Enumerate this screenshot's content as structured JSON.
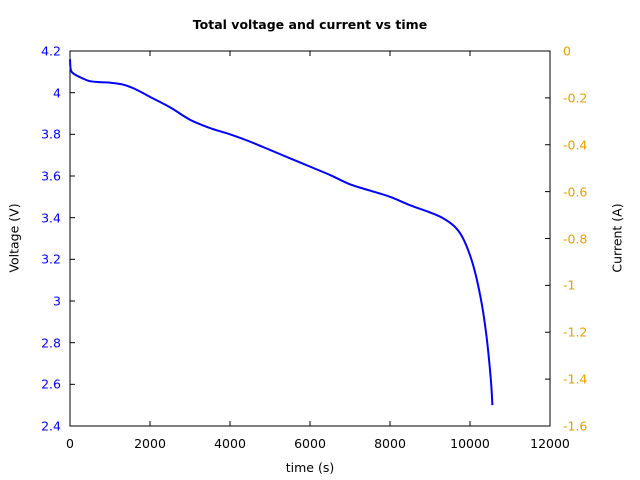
{
  "chart_data": {
    "type": "line",
    "title": "Total voltage and current vs time",
    "xlabel": "time (s)",
    "ylabel": "Voltage (V)",
    "y2label": "Current (A)",
    "xlim": [
      0,
      12000
    ],
    "ylim": [
      2.4,
      4.2
    ],
    "y2lim": [
      -1.6,
      0
    ],
    "grid": false,
    "legend": null,
    "x_ticks": [
      "0",
      "2000",
      "4000",
      "6000",
      "8000",
      "10000",
      "12000"
    ],
    "y_ticks": [
      "4.2",
      "4",
      "3.8",
      "3.6",
      "3.4",
      "3.2",
      "3",
      "2.8",
      "2.6",
      "2.4"
    ],
    "y2_ticks": [
      "0",
      "-0.2",
      "-0.4",
      "-0.6",
      "-0.8",
      "-1",
      "-1.2",
      "-1.4",
      "-1.6"
    ],
    "colors": {
      "voltage": "#0000ff",
      "current_axis": "#e69f00"
    },
    "series": [
      {
        "name": "Voltage",
        "axis": "left",
        "color": "#0000ff",
        "x": [
          0,
          20,
          100,
          300,
          500,
          800,
          1000,
          1300,
          1600,
          2000,
          2500,
          3000,
          3500,
          4000,
          4500,
          5000,
          5500,
          6000,
          6500,
          7000,
          7500,
          8000,
          8500,
          9000,
          9300,
          9600,
          9800,
          10000,
          10150,
          10300,
          10400,
          10470,
          10530,
          10560
        ],
        "values": [
          4.16,
          4.11,
          4.09,
          4.07,
          4.055,
          4.05,
          4.048,
          4.04,
          4.02,
          3.98,
          3.93,
          3.87,
          3.83,
          3.8,
          3.765,
          3.725,
          3.685,
          3.645,
          3.605,
          3.56,
          3.53,
          3.5,
          3.46,
          3.425,
          3.4,
          3.36,
          3.31,
          3.22,
          3.12,
          2.98,
          2.85,
          2.73,
          2.6,
          2.5
        ]
      }
    ]
  }
}
